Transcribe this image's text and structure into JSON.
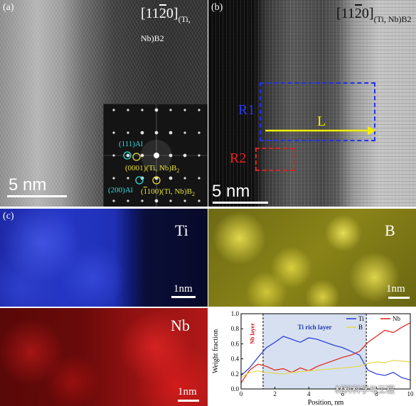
{
  "panels": {
    "a": {
      "label": "(a)",
      "zone": "[11",
      "zone_bar": "2",
      "zone_end": "0]",
      "zone_sub": "(Ti, Nb)B2",
      "scale": "5 nm",
      "fft": {
        "al111": "(111)Al",
        "b0001": "(0001)(Ti, Nb)B",
        "b0001_sub": "2",
        "al200": "(200)Al",
        "b1100_pre": "(",
        "b1100_bar": "1",
        "b1100_post": "100)(Ti, Nb)B",
        "b1100_sub": "2"
      }
    },
    "b": {
      "label": "(b)",
      "zone": "[11",
      "zone_bar": "2",
      "zone_end": "0]",
      "zone_sub": "(Ti, Nb)B2",
      "r1": "R1",
      "r2": "R2",
      "arrow": "L",
      "scale": "5 nm"
    },
    "c": {
      "label": "(c)",
      "maps": [
        {
          "element": "Ti",
          "scale": "1nm",
          "color": "#2233dd"
        },
        {
          "element": "B",
          "scale": "1nm",
          "color": "#c8c000"
        },
        {
          "element": "Nb",
          "scale": "1nm",
          "color": "#cc1111"
        }
      ]
    }
  },
  "chart_data": {
    "type": "line",
    "xlabel": "Position, nm",
    "ylabel": "Weight fraction",
    "xlim": [
      0,
      10
    ],
    "ylim": [
      0,
      1.0
    ],
    "xticks": [
      0,
      2,
      4,
      6,
      8,
      10
    ],
    "yticks": [
      0.0,
      0.2,
      0.4,
      0.6,
      0.8,
      1.0
    ],
    "annotations": [
      "Nb layer",
      "Ti rich layer"
    ],
    "dividers": [
      1.3,
      7.4
    ],
    "legend": [
      "Ti",
      "Nb",
      "B"
    ],
    "series": [
      {
        "name": "Ti",
        "color": "#1f35d8",
        "x": [
          0,
          0.5,
          1.0,
          1.5,
          2.0,
          2.5,
          3.0,
          3.5,
          4.0,
          4.5,
          5.0,
          5.5,
          6.0,
          6.5,
          7.0,
          7.5,
          8.0,
          8.5,
          9.0,
          9.5,
          10.0
        ],
        "y": [
          0.18,
          0.28,
          0.42,
          0.55,
          0.62,
          0.7,
          0.66,
          0.62,
          0.68,
          0.66,
          0.62,
          0.58,
          0.55,
          0.5,
          0.45,
          0.25,
          0.2,
          0.18,
          0.22,
          0.15,
          0.12
        ]
      },
      {
        "name": "Nb",
        "color": "#e0201a",
        "x": [
          0,
          0.5,
          1.0,
          1.5,
          2.0,
          2.5,
          3.0,
          3.5,
          4.0,
          4.5,
          5.0,
          5.5,
          6.0,
          6.5,
          7.0,
          7.5,
          8.0,
          8.5,
          9.0,
          9.5,
          10.0
        ],
        "y": [
          0.08,
          0.25,
          0.33,
          0.3,
          0.25,
          0.27,
          0.22,
          0.28,
          0.24,
          0.3,
          0.34,
          0.38,
          0.42,
          0.45,
          0.5,
          0.62,
          0.7,
          0.78,
          0.75,
          0.82,
          0.88
        ]
      },
      {
        "name": "B",
        "color": "#e6d84a",
        "x": [
          0,
          0.5,
          1.0,
          1.5,
          2.0,
          2.5,
          3.0,
          3.5,
          4.0,
          4.5,
          5.0,
          5.5,
          6.0,
          6.5,
          7.0,
          7.5,
          8.0,
          8.5,
          9.0,
          9.5,
          10.0
        ],
        "y": [
          0.15,
          0.22,
          0.24,
          0.22,
          0.21,
          0.2,
          0.22,
          0.23,
          0.24,
          0.25,
          0.26,
          0.27,
          0.28,
          0.29,
          0.3,
          0.34,
          0.36,
          0.35,
          0.38,
          0.37,
          0.36
        ]
      }
    ]
  },
  "watermark": "材料科学与工程"
}
